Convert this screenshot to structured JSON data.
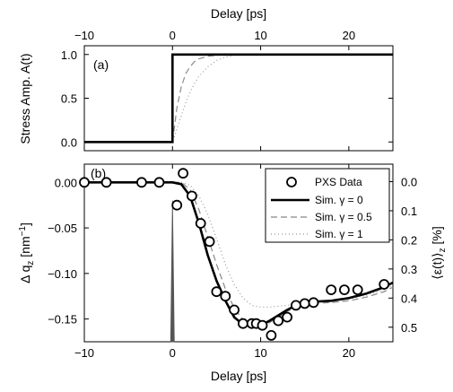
{
  "chart_data": [
    {
      "id": "panel_a",
      "type": "line",
      "panel_label": "(a)",
      "title": "",
      "xlabel": "Delay [ps]",
      "ylabel": "Stress Amp. A(t)",
      "xlim": [
        -10,
        25
      ],
      "ylim": [
        -0.1,
        1.1
      ],
      "x_axis_position": "top",
      "xticks": [
        -10,
        0,
        10,
        20
      ],
      "xtick_labels": [
        "−10",
        "0",
        "10",
        "20"
      ],
      "yticks": [
        0,
        0.5,
        1
      ],
      "ytick_labels": [
        "0.0",
        "0.5",
        "1.0"
      ],
      "grid": false,
      "series": [
        {
          "style": "solid",
          "color": "#000000",
          "x": [
            -10,
            0,
            0,
            25
          ],
          "y": [
            0,
            0,
            1,
            1
          ]
        },
        {
          "style": "dashed",
          "color": "#8c8c8c",
          "x": [
            -10,
            0,
            0,
            0.5,
            1,
            1.5,
            2,
            2.5,
            3,
            4,
            5,
            6,
            7,
            8,
            10,
            25
          ],
          "y": [
            0,
            0,
            0,
            0.39,
            0.63,
            0.78,
            0.86,
            0.92,
            0.95,
            0.98,
            0.99,
            1.0,
            1.0,
            1.0,
            1.0,
            1.0
          ]
        },
        {
          "style": "dotted",
          "color": "#9a9a9a",
          "x": [
            -10,
            0,
            0,
            0.5,
            1,
            1.5,
            2,
            2.5,
            3,
            4,
            5,
            6,
            7,
            8,
            10,
            25
          ],
          "y": [
            0,
            0,
            0,
            0.15,
            0.3,
            0.45,
            0.57,
            0.67,
            0.75,
            0.86,
            0.93,
            0.97,
            0.99,
            1.0,
            1.0,
            1.0
          ]
        }
      ]
    },
    {
      "id": "panel_b",
      "type": "line",
      "panel_label": "(b)",
      "title": "",
      "xlabel": "Delay [ps]",
      "ylabel": "Δ q",
      "ylabel_subscript": "z",
      "ylabel_unit": " [nm",
      "ylabel_unit_exp": "−1",
      "ylabel_unit_end": "]",
      "ylabel_right": "⟨ε(t)⟩",
      "ylabel_right_subscript": "z",
      "ylabel_right_unit": " [%]",
      "xlim": [
        -10,
        25
      ],
      "ylim": [
        -0.175,
        0.02
      ],
      "ylim_right": [
        0.55,
        -0.06
      ],
      "xticks": [
        -10,
        0,
        10,
        20
      ],
      "xtick_labels": [
        "−10",
        "0",
        "10",
        "20"
      ],
      "yticks": [
        0,
        -0.05,
        -0.1,
        -0.15
      ],
      "ytick_labels": [
        "0.00",
        "−0.05",
        "−0.10",
        "−0.15"
      ],
      "yticks_right": [
        0,
        0.1,
        0.2,
        0.3,
        0.4,
        0.5
      ],
      "ytick_labels_right": [
        "0.0",
        "0.1",
        "0.2",
        "0.3",
        "0.4",
        "0.5"
      ],
      "grid": false,
      "legend": {
        "position": "top-right",
        "entries": [
          {
            "label": "PXS Data",
            "marker": "circle"
          },
          {
            "label": "Sim. γ = 0",
            "style": "solid"
          },
          {
            "label": "Sim. γ = 0.5",
            "style": "dashed"
          },
          {
            "label": "Sim. γ = 1",
            "style": "dotted"
          }
        ]
      },
      "pulse": {
        "x": 0,
        "y_top": -0.02,
        "color": "#555555"
      },
      "series": [
        {
          "name": "PXS Data",
          "kind": "scatter",
          "x": [
            -10,
            -7.5,
            -3.5,
            -1.5,
            0.5,
            1.2,
            2.2,
            3.2,
            4.2,
            5.0,
            6.0,
            7.0,
            8.0,
            9.0,
            9.5,
            10.2,
            11.2,
            12.0,
            13.0,
            14.0,
            15.0,
            16.0,
            18.0,
            19.5,
            21.0,
            24.0
          ],
          "y": [
            0.0,
            0.0,
            0.0,
            0.0,
            -0.025,
            0.01,
            -0.015,
            -0.045,
            -0.065,
            -0.12,
            -0.125,
            -0.14,
            -0.155,
            -0.155,
            -0.155,
            -0.157,
            -0.168,
            -0.152,
            -0.148,
            -0.135,
            -0.133,
            -0.132,
            -0.118,
            -0.118,
            -0.118,
            -0.112
          ]
        },
        {
          "name": "Sim. γ = 0",
          "style": "solid",
          "color": "#000000",
          "x": [
            -10,
            0,
            1,
            2,
            3,
            4,
            5,
            6,
            7,
            8,
            9,
            10,
            11,
            12,
            13,
            14,
            16,
            18,
            20,
            22,
            24,
            25
          ],
          "y": [
            0.0,
            0.0,
            -0.002,
            -0.015,
            -0.045,
            -0.08,
            -0.108,
            -0.13,
            -0.148,
            -0.156,
            -0.157,
            -0.157,
            -0.152,
            -0.146,
            -0.14,
            -0.135,
            -0.131,
            -0.13,
            -0.127,
            -0.122,
            -0.115,
            -0.11
          ]
        },
        {
          "name": "Sim. γ = 0.5",
          "style": "dashed",
          "color": "#888888",
          "x": [
            -10,
            0,
            1,
            2,
            3,
            4,
            5,
            6,
            7,
            8,
            9,
            10,
            11,
            12,
            13,
            14,
            16,
            18,
            20,
            22,
            24,
            25
          ],
          "y": [
            0.0,
            0.0,
            0.0,
            -0.008,
            -0.03,
            -0.06,
            -0.09,
            -0.117,
            -0.138,
            -0.151,
            -0.156,
            -0.157,
            -0.154,
            -0.148,
            -0.142,
            -0.137,
            -0.133,
            -0.132,
            -0.13,
            -0.126,
            -0.12,
            -0.115
          ]
        },
        {
          "name": "Sim. γ = 1",
          "style": "dotted",
          "color": "#999999",
          "x": [
            -10,
            0,
            1,
            2,
            3,
            4,
            5,
            6,
            7,
            8,
            9,
            10,
            11,
            12,
            14,
            16,
            18,
            20,
            22,
            24,
            25
          ],
          "y": [
            0.0,
            0.0,
            0.0,
            -0.003,
            -0.015,
            -0.035,
            -0.062,
            -0.09,
            -0.112,
            -0.127,
            -0.135,
            -0.137,
            -0.137,
            -0.136,
            -0.134,
            -0.132,
            -0.13,
            -0.128,
            -0.124,
            -0.118,
            -0.113
          ]
        }
      ]
    }
  ]
}
